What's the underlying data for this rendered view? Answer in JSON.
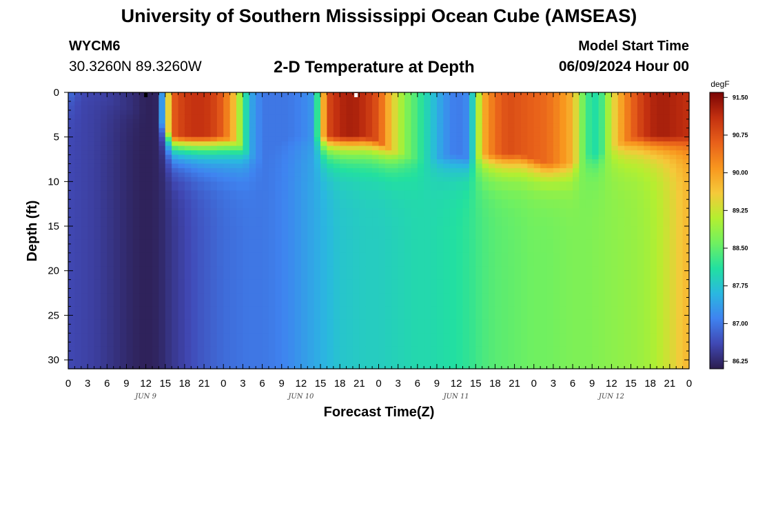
{
  "header": {
    "title": "University of Southern Mississippi Ocean Cube (AMSEAS)",
    "station_id": "WYCM6",
    "station_coords": "30.3260N  89.3260W",
    "plot_title": "2-D Temperature at Depth",
    "model_start_label": "Model Start Time",
    "model_start_value": "06/09/2024 Hour 00"
  },
  "footer": {
    "title": "University of Southern Mississippi Ocean Cube (AMSEAS)"
  },
  "chart_data": {
    "type": "heatmap",
    "title": "2-D Temperature at Depth",
    "xlabel": "Forecast Time(Z)",
    "ylabel": "Depth (ft)",
    "units": "degF",
    "x_ticks": [
      "0",
      "3",
      "6",
      "9",
      "12",
      "15",
      "18",
      "21",
      "0",
      "3",
      "6",
      "9",
      "12",
      "15",
      "18",
      "21",
      "0",
      "3",
      "6",
      "9",
      "12",
      "15",
      "18",
      "21",
      "0",
      "3",
      "6",
      "9",
      "12",
      "15",
      "18",
      "21",
      "0"
    ],
    "x_day_labels": [
      "JUN 9",
      "JUN 10",
      "JUN 11",
      "JUN 12"
    ],
    "x_range_hours": [
      0,
      96
    ],
    "y_ticks": [
      0,
      5,
      10,
      15,
      20,
      25,
      30
    ],
    "y_range": [
      0,
      31
    ],
    "y_reversed": true,
    "colorbar": {
      "ticks": [
        "91.50",
        "90.75",
        "90.00",
        "89.25",
        "88.50",
        "87.75",
        "87.00",
        "86.25"
      ],
      "range": [
        86.1,
        91.6
      ],
      "stops": [
        "#2c1d4e",
        "#4048b4",
        "#3f83f0",
        "#2ab8e0",
        "#22e0a0",
        "#70f060",
        "#b4ef30",
        "#f5c93a",
        "#f8961e",
        "#e8601a",
        "#c33010",
        "#7a0404"
      ]
    },
    "surface_profile_hours": [
      0,
      2,
      4,
      6,
      8,
      10,
      12,
      14,
      16,
      18,
      20,
      22,
      24,
      26,
      28,
      30,
      32,
      34,
      36,
      38,
      40,
      42,
      44,
      46,
      48,
      50,
      52,
      54,
      56,
      58,
      60,
      62,
      64,
      66,
      68,
      70,
      72,
      74,
      76,
      78,
      80,
      82,
      84,
      86,
      88,
      90,
      92,
      94,
      96
    ],
    "surface_profile_degF": [
      87.0,
      86.6,
      86.55,
      86.5,
      86.4,
      86.3,
      86.15,
      86.2,
      90.6,
      91.0,
      91.1,
      91.0,
      90.6,
      89.5,
      87.5,
      87.0,
      87.0,
      87.0,
      87.1,
      87.3,
      90.8,
      91.2,
      91.3,
      91.1,
      90.7,
      89.6,
      88.8,
      88.3,
      87.8,
      87.3,
      87.0,
      87.2,
      89.8,
      90.5,
      90.8,
      90.7,
      90.6,
      90.5,
      90.2,
      89.8,
      88.3,
      88.0,
      89.3,
      90.2,
      90.8,
      91.2,
      91.3,
      91.2,
      91.1
    ],
    "deep_profile_hours": [
      0,
      2,
      4,
      6,
      8,
      10,
      12,
      14,
      16,
      18,
      20,
      22,
      24,
      26,
      28,
      30,
      32,
      34,
      36,
      38,
      40,
      42,
      44,
      46,
      48,
      50,
      52,
      54,
      56,
      58,
      60,
      62,
      64,
      66,
      68,
      70,
      72,
      74,
      76,
      78,
      80,
      82,
      84,
      86,
      88,
      90,
      92,
      94,
      96
    ],
    "deep_profile_degF": [
      86.6,
      86.55,
      86.5,
      86.4,
      86.3,
      86.2,
      86.15,
      86.2,
      86.4,
      86.55,
      86.7,
      86.8,
      86.9,
      86.95,
      87.0,
      87.0,
      87.05,
      87.15,
      87.3,
      87.45,
      87.6,
      87.75,
      87.8,
      87.85,
      87.85,
      87.9,
      87.95,
      88.0,
      88.0,
      88.05,
      88.1,
      88.2,
      88.35,
      88.45,
      88.5,
      88.55,
      88.6,
      88.6,
      88.65,
      88.7,
      88.7,
      88.75,
      88.8,
      88.85,
      88.9,
      89.0,
      89.2,
      89.5,
      89.8
    ],
    "mixed_layer_depth_ft": [
      0,
      0,
      0.5,
      1,
      1.5,
      2,
      2.5,
      3,
      5,
      5,
      5,
      5,
      5,
      5.5,
      7,
      7.5,
      6,
      5,
      5,
      5,
      5,
      5,
      5,
      5,
      5.5,
      6.5,
      7,
      7.5,
      7.5,
      7.2,
      7.0,
      7.5,
      7,
      7,
      7,
      7,
      7.5,
      8,
      8,
      8,
      7,
      7,
      6,
      5.5,
      5,
      5,
      5,
      5,
      5
    ],
    "markers": [
      {
        "hour": 12,
        "color": "#000000"
      },
      {
        "hour": 44.5,
        "color": "#ffffff"
      }
    ]
  }
}
